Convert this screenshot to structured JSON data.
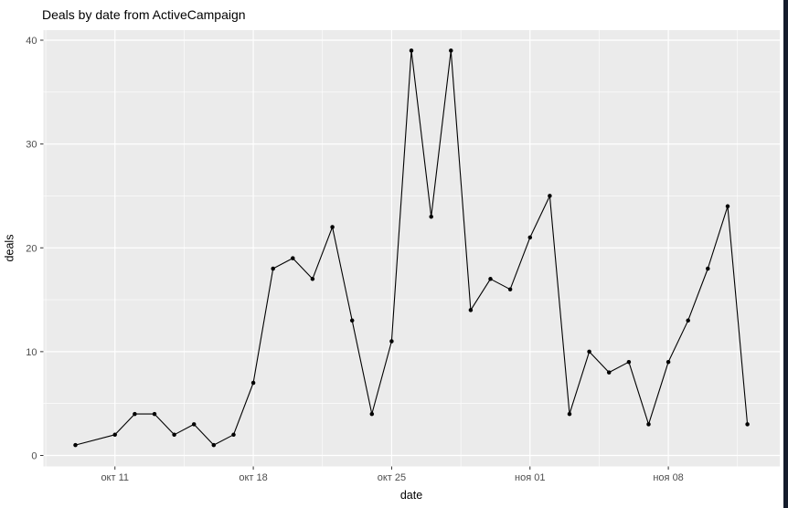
{
  "window": {
    "background": "#ffffff",
    "right_border_color": "#151c2c"
  },
  "chart_data": {
    "type": "line",
    "title": "Deals by date from ActiveCampaign",
    "xlabel": "date",
    "ylabel": "deals",
    "legend": "none",
    "grid": "on",
    "panel_background": "#EBEBEB",
    "gridline_color": "#FFFFFF",
    "tick_label_color": "#4D4D4D",
    "tick_mark_color": "#333333",
    "series_color": "#000000",
    "ylim": [
      -0.9,
      40.9
    ],
    "y_major_ticks": [
      0,
      10,
      20,
      30,
      40
    ],
    "y_minor_gridlines": [
      5,
      15,
      25,
      35
    ],
    "x_major_ticks": [
      {
        "day": 2,
        "label": "окт 11"
      },
      {
        "day": 9,
        "label": "окт 18"
      },
      {
        "day": 16,
        "label": "окт 25"
      },
      {
        "day": 23,
        "label": "ноя 01"
      },
      {
        "day": 30,
        "label": "ноя 08"
      }
    ],
    "x_minor_gridline_days": [
      -1.5,
      5.5,
      12.5,
      19.5,
      26.5,
      33.5
    ],
    "points": [
      {
        "date": "окт 09",
        "day": 0,
        "deals": 1
      },
      {
        "date": "окт 11",
        "day": 2,
        "deals": 2
      },
      {
        "date": "окт 12",
        "day": 3,
        "deals": 4
      },
      {
        "date": "окт 13",
        "day": 4,
        "deals": 4
      },
      {
        "date": "окт 14",
        "day": 5,
        "deals": 2
      },
      {
        "date": "окт 15",
        "day": 6,
        "deals": 3
      },
      {
        "date": "окт 16",
        "day": 7,
        "deals": 1
      },
      {
        "date": "окт 17",
        "day": 8,
        "deals": 2
      },
      {
        "date": "окт 18",
        "day": 9,
        "deals": 7
      },
      {
        "date": "окт 19",
        "day": 10,
        "deals": 18
      },
      {
        "date": "окт 20",
        "day": 11,
        "deals": 19
      },
      {
        "date": "окт 21",
        "day": 12,
        "deals": 17
      },
      {
        "date": "окт 22",
        "day": 13,
        "deals": 22
      },
      {
        "date": "окт 23",
        "day": 14,
        "deals": 13
      },
      {
        "date": "окт 24",
        "day": 15,
        "deals": 4
      },
      {
        "date": "окт 25",
        "day": 16,
        "deals": 11
      },
      {
        "date": "окт 26",
        "day": 17,
        "deals": 39
      },
      {
        "date": "окт 27",
        "day": 18,
        "deals": 23
      },
      {
        "date": "окт 28",
        "day": 19,
        "deals": 39
      },
      {
        "date": "окт 29",
        "day": 20,
        "deals": 14
      },
      {
        "date": "окт 30",
        "day": 21,
        "deals": 17
      },
      {
        "date": "окт 31",
        "day": 22,
        "deals": 16
      },
      {
        "date": "ноя 01",
        "day": 23,
        "deals": 21
      },
      {
        "date": "ноя 02",
        "day": 24,
        "deals": 25
      },
      {
        "date": "ноя 03",
        "day": 25,
        "deals": 4
      },
      {
        "date": "ноя 04",
        "day": 26,
        "deals": 10
      },
      {
        "date": "ноя 05",
        "day": 27,
        "deals": 8
      },
      {
        "date": "ноя 06",
        "day": 28,
        "deals": 9
      },
      {
        "date": "ноя 07",
        "day": 29,
        "deals": 3
      },
      {
        "date": "ноя 08",
        "day": 30,
        "deals": 9
      },
      {
        "date": "ноя 09",
        "day": 31,
        "deals": 13
      },
      {
        "date": "ноя 10",
        "day": 32,
        "deals": 18
      },
      {
        "date": "ноя 11",
        "day": 33,
        "deals": 24
      },
      {
        "date": "ноя 12",
        "day": 34,
        "deals": 3
      }
    ]
  }
}
